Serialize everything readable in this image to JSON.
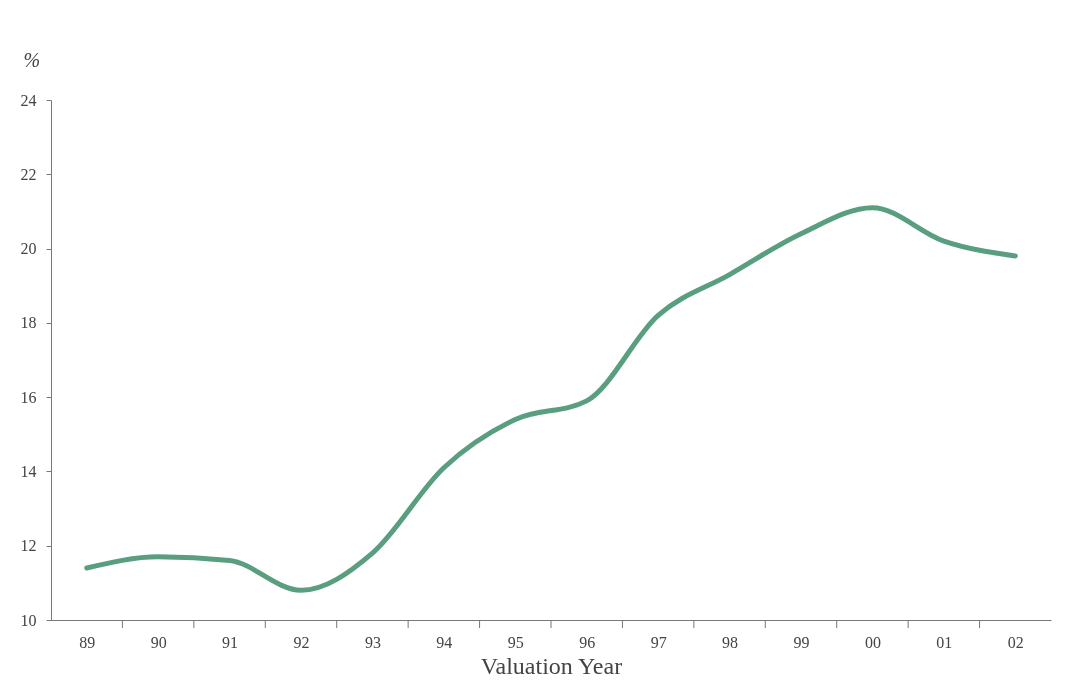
{
  "chart_data": {
    "type": "line",
    "xlabel": "Valuation Year",
    "ylabel": "%",
    "categories": [
      "89",
      "90",
      "91",
      "92",
      "93",
      "94",
      "95",
      "96",
      "97",
      "98",
      "99",
      "00",
      "01",
      "02"
    ],
    "series": [
      {
        "color": "#5a9e80",
        "values": [
          11.4,
          11.7,
          11.6,
          10.8,
          11.8,
          14.1,
          15.4,
          15.9,
          18.2,
          19.3,
          20.4,
          21.1,
          20.2,
          19.8
        ]
      }
    ],
    "ylim": [
      10,
      24
    ],
    "yticks": [
      10,
      12,
      14,
      16,
      18,
      20,
      22,
      24
    ],
    "grid": false,
    "marker": "none",
    "line_style": "solid"
  }
}
